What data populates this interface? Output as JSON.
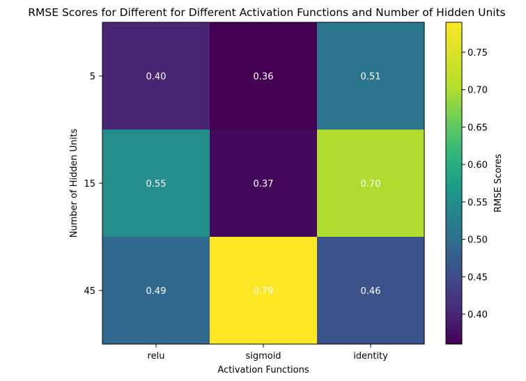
{
  "chart_data": {
    "type": "heatmap",
    "title": "RMSE Scores for Different for Different Activation Functions and Number of Hidden Units",
    "xlabel": "Activation Functions",
    "ylabel": "Number of Hidden Units",
    "x_categories": [
      "relu",
      "sigmoid",
      "identity"
    ],
    "y_categories": [
      "5",
      "15",
      "45"
    ],
    "values": [
      [
        0.4,
        0.36,
        0.51
      ],
      [
        0.55,
        0.37,
        0.7
      ],
      [
        0.49,
        0.79,
        0.46
      ]
    ],
    "cell_labels": [
      [
        "0.40",
        "0.36",
        "0.51"
      ],
      [
        "0.55",
        "0.37",
        "0.70"
      ],
      [
        "0.49",
        "0.79",
        "0.46"
      ]
    ],
    "colormap": "viridis",
    "colorbar": {
      "label": "RMSE Scores",
      "range": [
        0.36,
        0.79
      ],
      "ticks": [
        "0.40",
        "0.45",
        "0.50",
        "0.55",
        "0.60",
        "0.65",
        "0.70",
        "0.75"
      ]
    },
    "grid": false
  }
}
